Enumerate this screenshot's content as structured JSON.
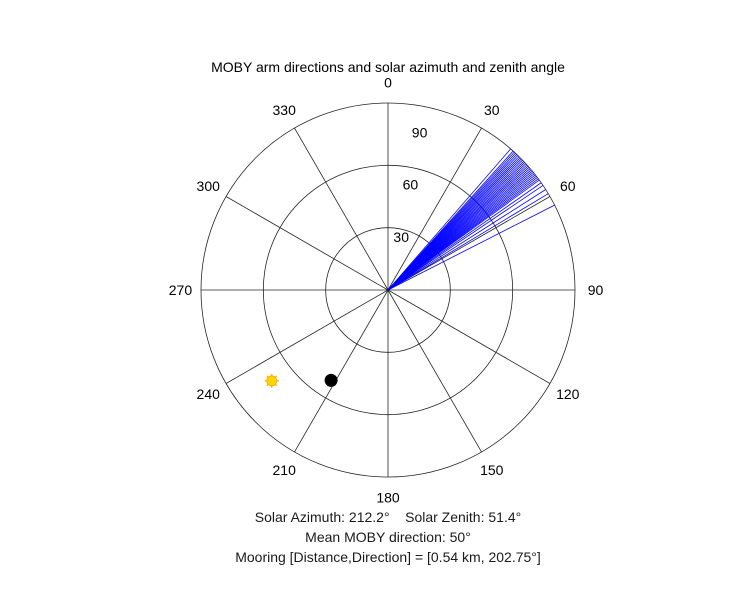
{
  "chart_data": {
    "type": "polar",
    "title": "MOBY arm directions and solar azimuth and zenith angle",
    "theta_ticks": [
      "0",
      "30",
      "60",
      "90",
      "120",
      "150",
      "180",
      "210",
      "240",
      "270",
      "300",
      "330"
    ],
    "theta_tick_values": [
      0,
      30,
      60,
      90,
      120,
      150,
      180,
      210,
      240,
      270,
      300,
      330
    ],
    "r_ticks": [
      "30",
      "60",
      "90"
    ],
    "r_tick_values": [
      30,
      60,
      90
    ],
    "r_lim": [
      0,
      90
    ],
    "theta_zero": "top",
    "theta_direction": "clockwise",
    "grid": true,
    "series": [
      {
        "type": "rays",
        "color": "#0000ff",
        "directions_deg": [
          41,
          42,
          42.5,
          43,
          43.5,
          44,
          44.5,
          45,
          45.5,
          46,
          46.5,
          47,
          47.5,
          48,
          48.5,
          49,
          49.5,
          50,
          50.5,
          51,
          51.5,
          52,
          52.5,
          53,
          53.5,
          54,
          55,
          56,
          57.5,
          59,
          63
        ],
        "length": 90
      },
      {
        "type": "marker",
        "shape": "sun",
        "color": "#ffd700",
        "edge_color": "#ffa500",
        "theta": 232,
        "r": 71
      },
      {
        "type": "marker",
        "shape": "dot",
        "color": "#000000",
        "theta": 212.2,
        "r": 51.4
      }
    ]
  },
  "footer": {
    "line1": "Solar Azimuth: 212.2°    Solar Zenith: 51.4°",
    "line2": "Mean MOBY direction: 50°",
    "line3": "Mooring [Distance,Direction] = [0.54 km, 202.75°]"
  }
}
